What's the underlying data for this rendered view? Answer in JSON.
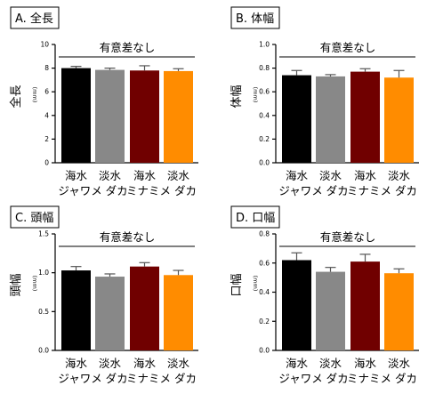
{
  "figure": {
    "group_labels_top": [
      "海水",
      "淡水",
      "海水",
      "淡水"
    ],
    "group_labels_bottom": [
      "ジャワメ ダカ",
      "ミナミメ ダカ"
    ]
  },
  "chart_data": [
    {
      "type": "bar",
      "panel_label": "A. 全長",
      "significance": "有意差なし",
      "ylabel": "全長",
      "yunit": "(mm)",
      "ylim": [
        0,
        10
      ],
      "yticks": [
        0,
        2,
        4,
        6,
        8,
        10
      ],
      "categories": [
        "海水",
        "淡水",
        "海水",
        "淡水"
      ],
      "values": [
        8.0,
        7.85,
        7.8,
        7.75
      ],
      "errors": [
        0.15,
        0.15,
        0.4,
        0.2
      ],
      "colors": [
        "#000000",
        "#888888",
        "#700000",
        "#ff8c00"
      ]
    },
    {
      "type": "bar",
      "panel_label": "B. 体幅",
      "significance": "有意差なし",
      "ylabel": "体幅",
      "yunit": "(mm)",
      "ylim": [
        0,
        1.0
      ],
      "yticks": [
        "0.0",
        "0.2",
        "0.4",
        "0.6",
        "0.8",
        "1.0"
      ],
      "categories": [
        "海水",
        "淡水",
        "海水",
        "淡水"
      ],
      "values": [
        0.74,
        0.73,
        0.77,
        0.72
      ],
      "errors": [
        0.04,
        0.015,
        0.025,
        0.06
      ],
      "colors": [
        "#000000",
        "#888888",
        "#700000",
        "#ff8c00"
      ]
    },
    {
      "type": "bar",
      "panel_label": "C. 頭幅",
      "significance": "有意差なし",
      "ylabel": "頭幅",
      "yunit": "(mm)",
      "ylim": [
        0,
        1.5
      ],
      "yticks": [
        "0.0",
        "0.5",
        "1.0",
        "1.5"
      ],
      "categories": [
        "海水",
        "淡水",
        "海水",
        "淡水"
      ],
      "values": [
        1.03,
        0.95,
        1.08,
        0.97
      ],
      "errors": [
        0.05,
        0.035,
        0.05,
        0.06
      ],
      "colors": [
        "#000000",
        "#888888",
        "#700000",
        "#ff8c00"
      ]
    },
    {
      "type": "bar",
      "panel_label": "D. 口幅",
      "significance": "有意差なし",
      "ylabel": "口幅",
      "yunit": "(mm)",
      "ylim": [
        0,
        0.8
      ],
      "yticks": [
        "0.0",
        "0.2",
        "0.4",
        "0.6",
        "0.8"
      ],
      "categories": [
        "海水",
        "淡水",
        "海水",
        "淡水"
      ],
      "values": [
        0.62,
        0.54,
        0.61,
        0.53
      ],
      "errors": [
        0.05,
        0.03,
        0.05,
        0.03
      ],
      "colors": [
        "#000000",
        "#888888",
        "#700000",
        "#ff8c00"
      ]
    }
  ]
}
